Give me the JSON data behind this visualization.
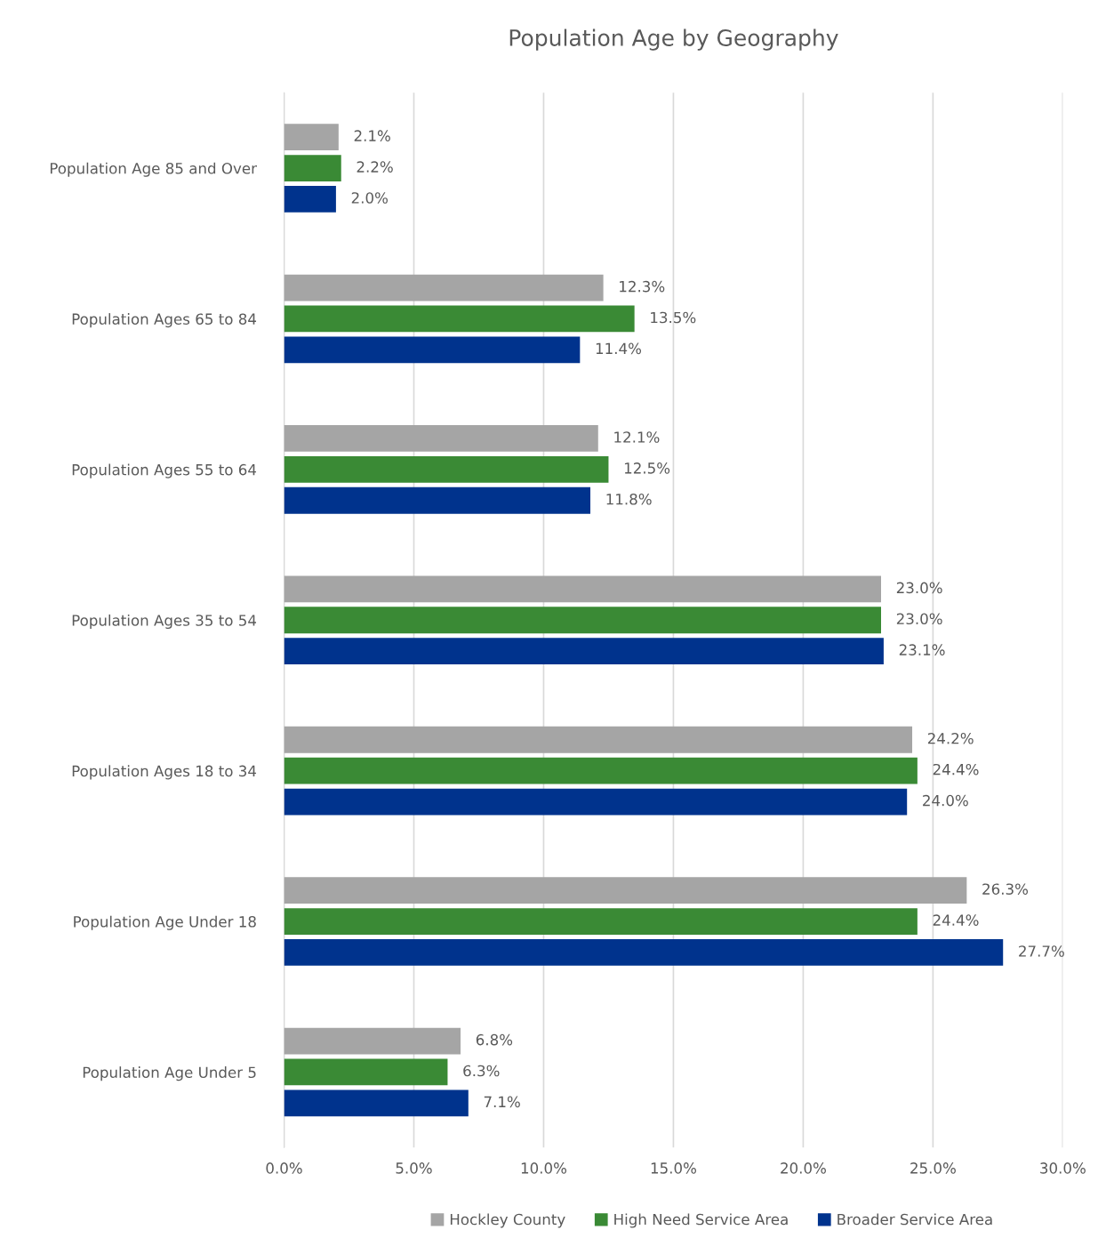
{
  "chart_data": {
    "type": "bar",
    "orientation": "horizontal",
    "title": "Population Age by Geography",
    "categories": [
      "Population Age 85 and Over",
      "Population Ages 65 to 84",
      "Population Ages 55 to 64",
      "Population Ages 35 to 54",
      "Population Ages 18 to 34",
      "Population Age Under 18",
      "Population Age Under 5"
    ],
    "series": [
      {
        "name": "Hockley County",
        "color": "#a5a5a5",
        "values": [
          2.1,
          12.3,
          12.1,
          23.0,
          24.2,
          26.3,
          6.8
        ],
        "value_labels": [
          "2.1%",
          "12.3%",
          "12.1%",
          "23.0%",
          "24.2%",
          "26.3%",
          "6.8%"
        ]
      },
      {
        "name": "High Need Service Area",
        "color": "#3a8a35",
        "values": [
          2.2,
          13.5,
          12.5,
          23.0,
          24.4,
          24.4,
          6.3
        ],
        "value_labels": [
          "2.2%",
          "13.5%",
          "12.5%",
          "23.0%",
          "24.4%",
          "24.4%",
          "6.3%"
        ]
      },
      {
        "name": "Broader Service Area",
        "color": "#00338d",
        "values": [
          2.0,
          11.4,
          11.8,
          23.1,
          24.0,
          27.7,
          7.1
        ],
        "value_labels": [
          "2.0%",
          "11.4%",
          "11.8%",
          "23.1%",
          "24.0%",
          "27.7%",
          "7.1%"
        ]
      }
    ],
    "xlim": [
      0,
      30
    ],
    "xticks": [
      {
        "value": 0,
        "label": "0.0%"
      },
      {
        "value": 5,
        "label": "5.0%"
      },
      {
        "value": 10,
        "label": "10.0%"
      },
      {
        "value": 15,
        "label": "15.0%"
      },
      {
        "value": 20,
        "label": "20.0%"
      },
      {
        "value": 25,
        "label": "25.0%"
      },
      {
        "value": 30,
        "label": "30.0%"
      }
    ],
    "grid": "x",
    "legend": "bottom"
  }
}
